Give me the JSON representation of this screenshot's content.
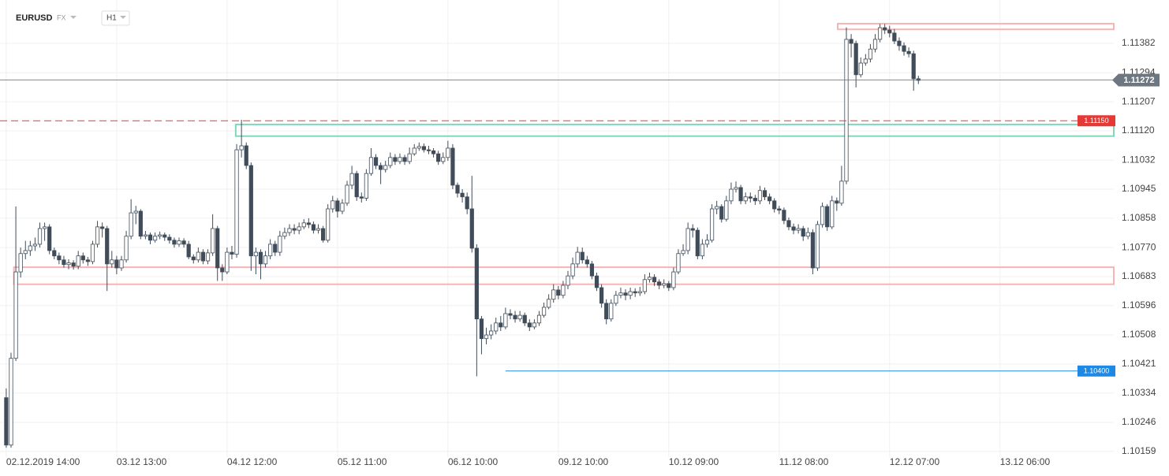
{
  "chart_data": {
    "type": "candlestick",
    "symbol": "EURUSD",
    "market": "FX",
    "timeframe": "H1",
    "colors": {
      "up": "#ffffff",
      "down": "#404c59",
      "outline": "#404c59"
    },
    "grid": true,
    "xlim": [
      -1.3,
      230.7
    ],
    "xticks": [
      {
        "value": 0,
        "label": "02.12.2019 14:00"
      },
      {
        "value": 23,
        "label": "03.12 13:00"
      },
      {
        "value": 46,
        "label": "04.12 12:00"
      },
      {
        "value": 69,
        "label": "05.12 11:00"
      },
      {
        "value": 92,
        "label": "06.12 10:00"
      },
      {
        "value": 115,
        "label": "09.12 10:00"
      },
      {
        "value": 138,
        "label": "10.12 09:00"
      },
      {
        "value": 161,
        "label": "11.12 08:00"
      },
      {
        "value": 184,
        "label": "12.12 07:00"
      },
      {
        "value": 207,
        "label": "13.12 06:00"
      }
    ],
    "ylim": [
      1.10142,
      1.11512
    ],
    "yticks": [
      1.11382,
      1.11294,
      1.11207,
      {
        "value": 1.1112,
        "label": "1.11120"
      },
      1.11032,
      1.10945,
      1.10858,
      {
        "value": 1.1077,
        "label": "1.10770"
      },
      1.10683,
      1.10596,
      1.10508,
      1.10421,
      1.10334,
      1.10246,
      1.10159
    ],
    "open": [
      1.1032,
      1.10178,
      1.10438,
      1.10697,
      1.10752,
      1.10761,
      1.10775,
      1.1078,
      1.10827,
      1.10832,
      1.10761,
      1.10745,
      1.10733,
      1.10719,
      1.10724,
      1.10714,
      1.10745,
      1.10733,
      1.10728,
      1.1078,
      1.10832,
      1.10827,
      1.10721,
      1.10733,
      1.10709,
      1.10733,
      1.10804,
      1.10874,
      1.10879,
      1.10804,
      1.10808,
      1.10792,
      1.10804,
      1.10808,
      1.10801,
      1.10792,
      1.1078,
      1.1079,
      1.1078,
      1.10742,
      1.10733,
      1.10756,
      1.1073,
      1.10754,
      1.10827,
      1.10709,
      1.10697,
      1.10756,
      1.1075,
      1.11063,
      1.11075,
      1.11016,
      1.10745,
      1.10756,
      1.10721,
      1.10745,
      1.1078,
      1.10756,
      1.10804,
      1.10815,
      1.10827,
      1.10822,
      1.10832,
      1.10844,
      1.10839,
      1.10822,
      1.10827,
      1.10792,
      1.10886,
      1.1091,
      1.10879,
      1.10903,
      1.10957,
      1.10992,
      1.10922,
      1.10918,
      1.10992,
      1.1104,
      1.11016,
      1.11004,
      1.11016,
      1.1104,
      1.11028,
      1.1104,
      1.11028,
      1.11051,
      1.11068,
      1.11073,
      1.11063,
      1.1106,
      1.11051,
      1.11028,
      1.1104,
      1.11068,
      1.10957,
      1.10933,
      1.10922,
      1.10886,
      1.10768,
      1.10556,
      1.10497,
      1.10508,
      1.1052,
      1.10544,
      1.10532,
      1.10572,
      1.10567,
      1.10556,
      1.10567,
      1.10544,
      1.10532,
      1.10544,
      1.10567,
      1.10591,
      1.10615,
      1.10643,
      1.10627,
      1.10657,
      1.10685,
      1.10721,
      1.10756,
      1.10733,
      1.10721,
      1.10685,
      1.1065,
      1.10603,
      1.10556,
      1.10603,
      1.10627,
      1.10634,
      1.10627,
      1.10638,
      1.10634,
      1.10638,
      1.10674,
      1.10681,
      1.10667,
      1.10657,
      1.10662,
      1.1065,
      1.10697,
      1.10752,
      1.10761,
      1.10827,
      1.10822,
      1.10745,
      1.1078,
      1.10792,
      1.10886,
      1.10893,
      1.10855,
      1.1091,
      1.10945,
      1.1095,
      1.1091,
      1.10922,
      1.10918,
      1.1091,
      1.10941,
      1.10922,
      1.1091,
      1.10886,
      1.10882,
      1.10851,
      1.10832,
      1.10822,
      1.10827,
      1.10804,
      1.10815,
      1.10709,
      1.10839,
      1.10893,
      1.10832,
      1.1091,
      1.10903,
      1.10969,
      1.11394,
      1.11382,
      1.11288,
      1.11323,
      1.11335,
      1.11365,
      1.11394,
      1.11429,
      1.11422,
      1.11413,
      1.11389,
      1.11375,
      1.11358,
      1.11351,
      1.11276
    ],
    "high": [
      1.10348,
      1.10455,
      1.10893,
      1.1077,
      1.1079,
      1.1079,
      1.108,
      1.10845,
      1.10845,
      1.1084,
      1.1077,
      1.10755,
      1.10745,
      1.10735,
      1.10732,
      1.1076,
      1.10755,
      1.10742,
      1.1079,
      1.1085,
      1.10845,
      1.10835,
      1.1076,
      1.10745,
      1.10745,
      1.1082,
      1.10915,
      1.10895,
      1.10885,
      1.1082,
      1.10815,
      1.10815,
      1.10818,
      1.10815,
      1.1081,
      1.108,
      1.108,
      1.10798,
      1.1079,
      1.1075,
      1.1077,
      1.10765,
      1.10765,
      1.1087,
      1.10835,
      1.1072,
      1.1077,
      1.10775,
      1.1108,
      1.11153,
      1.11085,
      1.11025,
      1.1077,
      1.10765,
      1.1076,
      1.10795,
      1.1079,
      1.1082,
      1.1083,
      1.1084,
      1.1084,
      1.10845,
      1.10855,
      1.10858,
      1.10848,
      1.1084,
      1.10835,
      1.109,
      1.10925,
      1.10918,
      1.10915,
      1.1097,
      1.11015,
      1.11,
      1.10935,
      1.11005,
      1.11068,
      1.1105,
      1.11025,
      1.1103,
      1.11055,
      1.1105,
      1.11052,
      1.11048,
      1.1107,
      1.1108,
      1.11085,
      1.11082,
      1.11075,
      1.11068,
      1.1106,
      1.11055,
      1.1109,
      1.1108,
      1.10965,
      1.10945,
      1.10935,
      1.10985,
      1.1078,
      1.10565,
      1.1053,
      1.1054,
      1.1056,
      1.10565,
      1.1059,
      1.10585,
      1.1058,
      1.1058,
      1.10575,
      1.10555,
      1.10555,
      1.1058,
      1.10605,
      1.1063,
      1.1066,
      1.10655,
      1.1067,
      1.107,
      1.1074,
      1.10772,
      1.1077,
      1.10745,
      1.1073,
      1.10695,
      1.1066,
      1.10615,
      1.10615,
      1.1064,
      1.1065,
      1.10645,
      1.1065,
      1.10648,
      1.10652,
      1.1069,
      1.10695,
      1.1069,
      1.10675,
      1.10675,
      1.1067,
      1.1071,
      1.10765,
      1.1078,
      1.10845,
      1.1084,
      1.1083,
      1.10795,
      1.1081,
      1.109,
      1.1091,
      1.109,
      1.10925,
      1.10965,
      1.10968,
      1.10958,
      1.10935,
      1.10935,
      1.10928,
      1.10955,
      1.1095,
      1.10932,
      1.10918,
      1.10895,
      1.1089,
      1.1086,
      1.10842,
      1.1084,
      1.10835,
      1.1083,
      1.10825,
      1.1085,
      1.10905,
      1.109,
      1.10925,
      1.1092,
      1.11015,
      1.1143,
      1.1141,
      1.1139,
      1.1134,
      1.1135,
      1.1138,
      1.1141,
      1.1144,
      1.1144,
      1.11435,
      1.11425,
      1.114,
      1.11385,
      1.1137,
      1.1136,
      1.11285
    ],
    "low": [
      1.1017,
      1.1017,
      1.1043,
      1.1068,
      1.10735,
      1.10745,
      1.1076,
      1.1077,
      1.1079,
      1.1075,
      1.10735,
      1.1072,
      1.1071,
      1.10705,
      1.10704,
      1.10705,
      1.10722,
      1.10715,
      1.1072,
      1.1077,
      1.108,
      1.1064,
      1.1071,
      1.1069,
      1.107,
      1.10725,
      1.10795,
      1.1084,
      1.10795,
      1.10795,
      1.1078,
      1.10785,
      1.10795,
      1.1079,
      1.10782,
      1.1077,
      1.10772,
      1.1077,
      1.10735,
      1.10722,
      1.10725,
      1.1072,
      1.1072,
      1.10745,
      1.1067,
      1.1067,
      1.1069,
      1.10735,
      1.1074,
      1.1104,
      1.11005,
      1.107,
      1.1069,
      1.10675,
      1.1071,
      1.10735,
      1.10745,
      1.10745,
      1.10795,
      1.10805,
      1.1081,
      1.1081,
      1.10825,
      1.10828,
      1.10812,
      1.10812,
      1.10785,
      1.10785,
      1.10875,
      1.1086,
      1.1087,
      1.10895,
      1.10945,
      1.1091,
      1.10905,
      1.1091,
      1.10985,
      1.11005,
      1.1096,
      1.10995,
      1.11008,
      1.11018,
      1.1102,
      1.11018,
      1.1102,
      1.11045,
      1.1106,
      1.11055,
      1.1105,
      1.1104,
      1.11018,
      1.1102,
      1.1103,
      1.10945,
      1.1092,
      1.10905,
      1.1087,
      1.10755,
      1.10384,
      1.1045,
      1.1048,
      1.10495,
      1.1051,
      1.1052,
      1.10525,
      1.10555,
      1.10545,
      1.10548,
      1.10535,
      1.1052,
      1.10525,
      1.10535,
      1.1056,
      1.10585,
      1.10605,
      1.10615,
      1.10618,
      1.10645,
      1.10675,
      1.1071,
      1.10722,
      1.1071,
      1.10675,
      1.1064,
      1.1059,
      1.1054,
      1.10548,
      1.10595,
      1.10618,
      1.10612,
      1.10615,
      1.10622,
      1.10625,
      1.1063,
      1.10665,
      1.10655,
      1.10645,
      1.10648,
      1.1064,
      1.10642,
      1.1069,
      1.10745,
      1.1075,
      1.108,
      1.10735,
      1.10735,
      1.1077,
      1.10785,
      1.1087,
      1.10845,
      1.10848,
      1.109,
      1.10935,
      1.109,
      1.109,
      1.10905,
      1.10898,
      1.109,
      1.10912,
      1.109,
      1.10875,
      1.1087,
      1.1084,
      1.10822,
      1.1081,
      1.10812,
      1.1079,
      1.10795,
      1.1069,
      1.107,
      1.1083,
      1.1082,
      1.10825,
      1.1088,
      1.10895,
      1.1096,
      1.1134,
      1.1125,
      1.1128,
      1.11315,
      1.11325,
      1.11355,
      1.11385,
      1.1141,
      1.114,
      1.1138,
      1.1136,
      1.11345,
      1.1134,
      1.1124,
      1.1126
    ],
    "close": [
      1.10178,
      1.10438,
      1.10697,
      1.10752,
      1.10761,
      1.10775,
      1.1078,
      1.10827,
      1.10832,
      1.10761,
      1.10745,
      1.10733,
      1.10719,
      1.10724,
      1.10714,
      1.10745,
      1.10733,
      1.10728,
      1.1078,
      1.10832,
      1.10827,
      1.10721,
      1.10733,
      1.10709,
      1.10733,
      1.10804,
      1.10874,
      1.10879,
      1.10804,
      1.10808,
      1.10792,
      1.10804,
      1.10808,
      1.10801,
      1.10792,
      1.1078,
      1.1079,
      1.1078,
      1.10742,
      1.10733,
      1.10756,
      1.1073,
      1.10754,
      1.10827,
      1.10709,
      1.10697,
      1.10756,
      1.1075,
      1.11063,
      1.11075,
      1.11016,
      1.10745,
      1.10756,
      1.10721,
      1.10745,
      1.1078,
      1.10756,
      1.10804,
      1.10815,
      1.10827,
      1.10822,
      1.10832,
      1.10844,
      1.10839,
      1.10822,
      1.10827,
      1.10792,
      1.10886,
      1.1091,
      1.10879,
      1.10903,
      1.10957,
      1.10992,
      1.10922,
      1.10918,
      1.10992,
      1.1104,
      1.11016,
      1.11004,
      1.11016,
      1.1104,
      1.11028,
      1.1104,
      1.11028,
      1.11051,
      1.11068,
      1.11073,
      1.11063,
      1.1106,
      1.11051,
      1.11028,
      1.1104,
      1.11068,
      1.10957,
      1.10933,
      1.10922,
      1.10886,
      1.10768,
      1.10556,
      1.10497,
      1.10508,
      1.1052,
      1.10544,
      1.10532,
      1.10572,
      1.10567,
      1.10556,
      1.10567,
      1.10544,
      1.10532,
      1.10544,
      1.10567,
      1.10591,
      1.10615,
      1.10643,
      1.10627,
      1.10657,
      1.10685,
      1.10721,
      1.10756,
      1.10733,
      1.10721,
      1.10685,
      1.1065,
      1.10603,
      1.10556,
      1.10603,
      1.10627,
      1.10634,
      1.10627,
      1.10638,
      1.10634,
      1.10638,
      1.10674,
      1.10681,
      1.10667,
      1.10657,
      1.10662,
      1.1065,
      1.10697,
      1.10752,
      1.10761,
      1.10827,
      1.10822,
      1.10745,
      1.1078,
      1.10792,
      1.10886,
      1.10893,
      1.10855,
      1.1091,
      1.10945,
      1.1095,
      1.1091,
      1.10922,
      1.10918,
      1.1091,
      1.10941,
      1.10922,
      1.1091,
      1.10886,
      1.10882,
      1.10851,
      1.10832,
      1.10822,
      1.10827,
      1.10804,
      1.10815,
      1.10709,
      1.10839,
      1.10893,
      1.10832,
      1.1091,
      1.10903,
      1.10969,
      1.11394,
      1.11382,
      1.11288,
      1.11323,
      1.11335,
      1.11365,
      1.11394,
      1.11429,
      1.11422,
      1.11413,
      1.11389,
      1.11375,
      1.11358,
      1.11351,
      1.11276,
      1.11271
    ],
    "zones": [
      {
        "top": 1.11441,
        "bottom": 1.11424,
        "start": 173.2,
        "color": "#f7b4b4"
      },
      {
        "top": 1.11139,
        "bottom": 1.11104,
        "start": 47.8,
        "color": "#7fd9b9"
      },
      {
        "top": 1.10711,
        "bottom": 1.1066,
        "start": 1.6,
        "color": "#f7b4b4"
      }
    ],
    "price_lines": [
      {
        "value": {
          "value": 1.1115,
          "label": "1.11150"
        },
        "start": -1.3,
        "color": "#e53935",
        "dash": true
      },
      {
        "value": {
          "value": 1.104,
          "label": "1.10400"
        },
        "start": 104,
        "color": "#1e88e5",
        "dash": false
      }
    ],
    "last_price": 1.11272
  }
}
